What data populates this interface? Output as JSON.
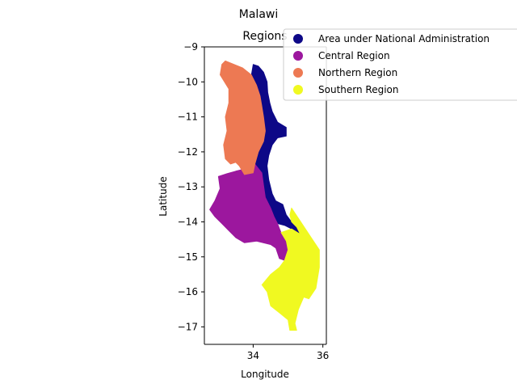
{
  "chart_data": {
    "type": "map",
    "suptitle": "Malawi",
    "title": "Regions",
    "xlabel": "Longitude",
    "ylabel": "Latitude",
    "xlim": [
      32.6,
      36.1
    ],
    "ylim": [
      -17.5,
      -9.0
    ],
    "xticks": [
      34,
      36
    ],
    "yticks": [
      -9,
      -10,
      -11,
      -12,
      -13,
      -14,
      -15,
      -16,
      -17
    ],
    "legend_placement": "upper-right-outside",
    "regions": [
      {
        "name": "Area under National Administration",
        "color": "#0d0887",
        "polygons": [
          [
            [
              34.0,
              -9.5
            ],
            [
              34.15,
              -9.55
            ],
            [
              34.3,
              -9.72
            ],
            [
              34.4,
              -10.0
            ],
            [
              34.42,
              -10.3
            ],
            [
              34.48,
              -10.6
            ],
            [
              34.55,
              -10.85
            ],
            [
              34.7,
              -11.15
            ],
            [
              34.95,
              -11.3
            ],
            [
              34.95,
              -11.55
            ],
            [
              34.7,
              -11.6
            ],
            [
              34.55,
              -11.8
            ],
            [
              34.45,
              -12.1
            ],
            [
              34.4,
              -12.4
            ],
            [
              34.45,
              -12.8
            ],
            [
              34.55,
              -13.2
            ],
            [
              34.65,
              -13.4
            ],
            [
              34.85,
              -13.5
            ],
            [
              34.95,
              -13.8
            ],
            [
              35.1,
              -14.0
            ],
            [
              35.25,
              -14.15
            ],
            [
              35.35,
              -14.35
            ],
            [
              35.1,
              -14.2
            ],
            [
              34.9,
              -14.1
            ],
            [
              34.7,
              -14.05
            ],
            [
              34.6,
              -13.85
            ],
            [
              34.5,
              -13.6
            ],
            [
              34.35,
              -13.3
            ],
            [
              34.3,
              -12.95
            ],
            [
              34.25,
              -12.6
            ],
            [
              34.05,
              -12.35
            ],
            [
              34.15,
              -12.0
            ],
            [
              34.3,
              -11.7
            ],
            [
              34.35,
              -11.4
            ],
            [
              34.3,
              -11.0
            ],
            [
              34.25,
              -10.7
            ],
            [
              34.2,
              -10.4
            ],
            [
              34.1,
              -10.1
            ],
            [
              33.95,
              -9.8
            ]
          ]
        ]
      },
      {
        "name": "Central Region",
        "color": "#9c179e",
        "polygons": [
          [
            [
              33.0,
              -12.7
            ],
            [
              33.25,
              -12.62
            ],
            [
              33.5,
              -12.55
            ],
            [
              33.7,
              -12.5
            ],
            [
              33.85,
              -12.3
            ],
            [
              34.05,
              -12.35
            ],
            [
              34.25,
              -12.6
            ],
            [
              34.3,
              -12.95
            ],
            [
              34.35,
              -13.3
            ],
            [
              34.5,
              -13.6
            ],
            [
              34.6,
              -13.85
            ],
            [
              34.7,
              -14.05
            ],
            [
              34.8,
              -14.3
            ],
            [
              34.95,
              -14.55
            ],
            [
              35.0,
              -14.8
            ],
            [
              34.9,
              -15.1
            ],
            [
              34.75,
              -15.05
            ],
            [
              34.65,
              -14.75
            ],
            [
              34.5,
              -14.65
            ],
            [
              34.1,
              -14.55
            ],
            [
              33.75,
              -14.6
            ],
            [
              33.5,
              -14.45
            ],
            [
              33.3,
              -14.25
            ],
            [
              33.1,
              -14.05
            ],
            [
              32.9,
              -13.85
            ],
            [
              32.75,
              -13.65
            ],
            [
              32.9,
              -13.4
            ],
            [
              33.05,
              -13.05
            ]
          ]
        ]
      },
      {
        "name": "Northern Region",
        "color": "#ed7953",
        "polygons": [
          [
            [
              33.2,
              -9.4
            ],
            [
              33.45,
              -9.5
            ],
            [
              33.7,
              -9.6
            ],
            [
              33.95,
              -9.8
            ],
            [
              34.1,
              -10.1
            ],
            [
              34.2,
              -10.4
            ],
            [
              34.25,
              -10.7
            ],
            [
              34.3,
              -11.0
            ],
            [
              34.35,
              -11.4
            ],
            [
              34.3,
              -11.7
            ],
            [
              34.15,
              -12.0
            ],
            [
              34.05,
              -12.35
            ],
            [
              34.0,
              -12.6
            ],
            [
              33.75,
              -12.65
            ],
            [
              33.6,
              -12.4
            ],
            [
              33.5,
              -12.3
            ],
            [
              33.35,
              -12.35
            ],
            [
              33.2,
              -12.2
            ],
            [
              33.15,
              -11.8
            ],
            [
              33.25,
              -11.4
            ],
            [
              33.2,
              -11.0
            ],
            [
              33.3,
              -10.6
            ],
            [
              33.3,
              -10.2
            ],
            [
              33.05,
              -9.8
            ],
            [
              33.1,
              -9.5
            ]
          ]
        ]
      },
      {
        "name": "Southern Region",
        "color": "#f0f921",
        "polygons": [
          [
            [
              35.1,
              -13.6
            ],
            [
              35.3,
              -13.9
            ],
            [
              35.5,
              -14.2
            ],
            [
              35.7,
              -14.5
            ],
            [
              35.9,
              -14.8
            ],
            [
              35.9,
              -15.3
            ],
            [
              35.8,
              -15.9
            ],
            [
              35.6,
              -16.2
            ],
            [
              35.45,
              -16.15
            ],
            [
              35.3,
              -16.5
            ],
            [
              35.2,
              -16.9
            ],
            [
              35.25,
              -17.1
            ],
            [
              35.05,
              -17.1
            ],
            [
              35.0,
              -16.8
            ],
            [
              34.75,
              -16.6
            ],
            [
              34.5,
              -16.4
            ],
            [
              34.4,
              -16.0
            ],
            [
              34.25,
              -15.8
            ],
            [
              34.5,
              -15.5
            ],
            [
              34.75,
              -15.3
            ],
            [
              34.9,
              -15.1
            ],
            [
              35.0,
              -14.8
            ],
            [
              34.95,
              -14.55
            ],
            [
              34.8,
              -14.3
            ],
            [
              35.1,
              -14.2
            ],
            [
              35.35,
              -14.35
            ],
            [
              35.25,
              -14.15
            ],
            [
              35.1,
              -14.0
            ],
            [
              35.05,
              -13.8
            ]
          ]
        ]
      }
    ]
  }
}
